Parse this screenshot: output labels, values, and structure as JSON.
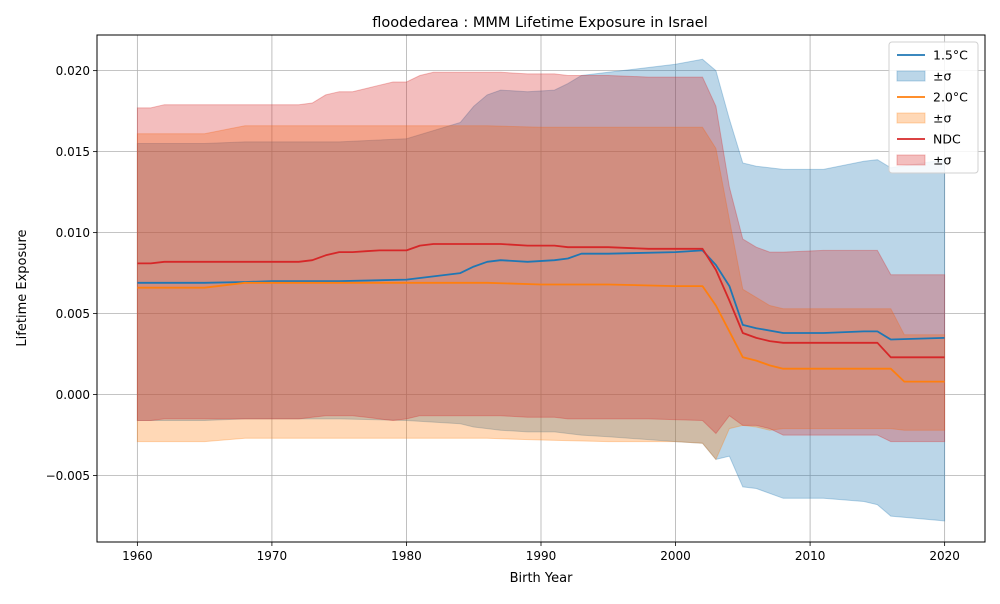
{
  "chart_data": {
    "type": "area",
    "title": "floodedarea : MMM Lifetime Exposure in Israel",
    "xlabel": "Birth Year",
    "ylabel": "Lifetime Exposure",
    "xlim": [
      1957,
      2023
    ],
    "ylim": [
      -0.0091,
      0.0222
    ],
    "grid": true,
    "legend_position": "top-right",
    "x_ticks": [
      1960,
      1970,
      1980,
      1990,
      2000,
      2010,
      2020
    ],
    "y_ticks": [
      -0.005,
      0.0,
      0.005,
      0.01,
      0.015,
      0.02
    ],
    "y_tick_labels": [
      "−0.005",
      "0.000",
      "0.005",
      "0.010",
      "0.015",
      "0.020"
    ],
    "series": [
      {
        "name": "1.5°C",
        "band_name": "±σ",
        "color": "#1f77b4",
        "x": [
          1960,
          1965,
          1968,
          1970,
          1975,
          1980,
          1984,
          1985,
          1986,
          1987,
          1989,
          1991,
          1992,
          1993,
          1995,
          2000,
          2002,
          2003,
          2004,
          2005,
          2006,
          2008,
          2011,
          2014,
          2015,
          2016,
          2020
        ],
        "values": [
          0.0069,
          0.0069,
          0.00695,
          0.007,
          0.007,
          0.0071,
          0.0075,
          0.0079,
          0.0082,
          0.0083,
          0.0082,
          0.0083,
          0.0084,
          0.0087,
          0.0087,
          0.0088,
          0.0089,
          0.008,
          0.0067,
          0.0043,
          0.0041,
          0.0038,
          0.0038,
          0.0039,
          0.0039,
          0.0034,
          0.0035
        ],
        "upper": [
          0.0155,
          0.0155,
          0.0156,
          0.0156,
          0.0156,
          0.0158,
          0.0168,
          0.0178,
          0.0185,
          0.0188,
          0.0187,
          0.0188,
          0.0192,
          0.0197,
          0.0199,
          0.0204,
          0.0207,
          0.02,
          0.017,
          0.0143,
          0.0141,
          0.0139,
          0.0139,
          0.0144,
          0.0145,
          0.014,
          0.0145
        ],
        "lower": [
          -0.0016,
          -0.0016,
          -0.0015,
          -0.0015,
          -0.0015,
          -0.0016,
          -0.0018,
          -0.002,
          -0.0021,
          -0.0022,
          -0.0023,
          -0.0023,
          -0.0024,
          -0.0025,
          -0.0026,
          -0.0029,
          -0.003,
          -0.004,
          -0.0038,
          -0.0057,
          -0.0058,
          -0.0064,
          -0.0064,
          -0.0066,
          -0.0068,
          -0.0075,
          -0.0078
        ]
      },
      {
        "name": "2.0°C",
        "band_name": "±σ",
        "color": "#ff7f0e",
        "x": [
          1960,
          1965,
          1968,
          1970,
          1980,
          1986,
          1990,
          1995,
          2000,
          2002,
          2003,
          2004,
          2005,
          2006,
          2007,
          2008,
          2011,
          2014,
          2016,
          2017,
          2020
        ],
        "values": [
          0.0066,
          0.0066,
          0.0069,
          0.0069,
          0.0069,
          0.0069,
          0.0068,
          0.0068,
          0.0067,
          0.0067,
          0.0055,
          0.0039,
          0.0023,
          0.0021,
          0.0018,
          0.0016,
          0.0016,
          0.0016,
          0.0016,
          0.0008,
          0.0008
        ],
        "upper": [
          0.0161,
          0.0161,
          0.0166,
          0.0166,
          0.0166,
          0.0166,
          0.0165,
          0.0165,
          0.0165,
          0.0165,
          0.0152,
          0.0108,
          0.0065,
          0.006,
          0.0055,
          0.0053,
          0.0053,
          0.0053,
          0.0053,
          0.0037,
          0.0037
        ],
        "lower": [
          -0.0029,
          -0.0029,
          -0.0027,
          -0.0027,
          -0.0027,
          -0.0027,
          -0.0028,
          -0.0029,
          -0.0029,
          -0.003,
          -0.004,
          -0.0021,
          -0.0019,
          -0.002,
          -0.0022,
          -0.0021,
          -0.0021,
          -0.0021,
          -0.0021,
          -0.0022,
          -0.0022
        ]
      },
      {
        "name": "NDC",
        "band_name": "±σ",
        "color": "#d62728",
        "x": [
          1960,
          1961,
          1962,
          1965,
          1970,
          1972,
          1973,
          1974,
          1975,
          1976,
          1977,
          1978,
          1979,
          1980,
          1981,
          1982,
          1985,
          1987,
          1989,
          1991,
          1992,
          1995,
          1998,
          2002,
          2003,
          2004,
          2005,
          2006,
          2007,
          2008,
          2011,
          2014,
          2015,
          2016,
          2020
        ],
        "values": [
          0.0081,
          0.0081,
          0.0082,
          0.0082,
          0.0082,
          0.0082,
          0.0083,
          0.0086,
          0.0088,
          0.0088,
          0.00885,
          0.0089,
          0.0089,
          0.0089,
          0.0092,
          0.0093,
          0.0093,
          0.0093,
          0.0092,
          0.0092,
          0.0091,
          0.0091,
          0.009,
          0.009,
          0.0077,
          0.0058,
          0.0038,
          0.0035,
          0.0033,
          0.0032,
          0.0032,
          0.0032,
          0.0032,
          0.0023,
          0.0023
        ],
        "upper": [
          0.0177,
          0.0177,
          0.0179,
          0.0179,
          0.0179,
          0.0179,
          0.018,
          0.0185,
          0.0187,
          0.0187,
          0.0189,
          0.0191,
          0.0193,
          0.0193,
          0.0197,
          0.0199,
          0.0199,
          0.0199,
          0.0198,
          0.0198,
          0.0197,
          0.0197,
          0.0196,
          0.0196,
          0.0178,
          0.0128,
          0.0096,
          0.0091,
          0.0088,
          0.0088,
          0.0089,
          0.0089,
          0.0089,
          0.0074,
          0.0074
        ],
        "lower": [
          -0.0016,
          -0.0016,
          -0.0015,
          -0.0015,
          -0.0015,
          -0.0015,
          -0.0014,
          -0.0013,
          -0.0013,
          -0.0013,
          -0.0014,
          -0.0015,
          -0.0016,
          -0.0015,
          -0.0013,
          -0.0013,
          -0.0013,
          -0.0013,
          -0.0014,
          -0.0014,
          -0.0015,
          -0.0015,
          -0.0015,
          -0.0016,
          -0.0024,
          -0.0013,
          -0.0019,
          -0.0019,
          -0.0021,
          -0.0025,
          -0.0025,
          -0.0025,
          -0.0025,
          -0.0029,
          -0.0029
        ]
      }
    ]
  }
}
